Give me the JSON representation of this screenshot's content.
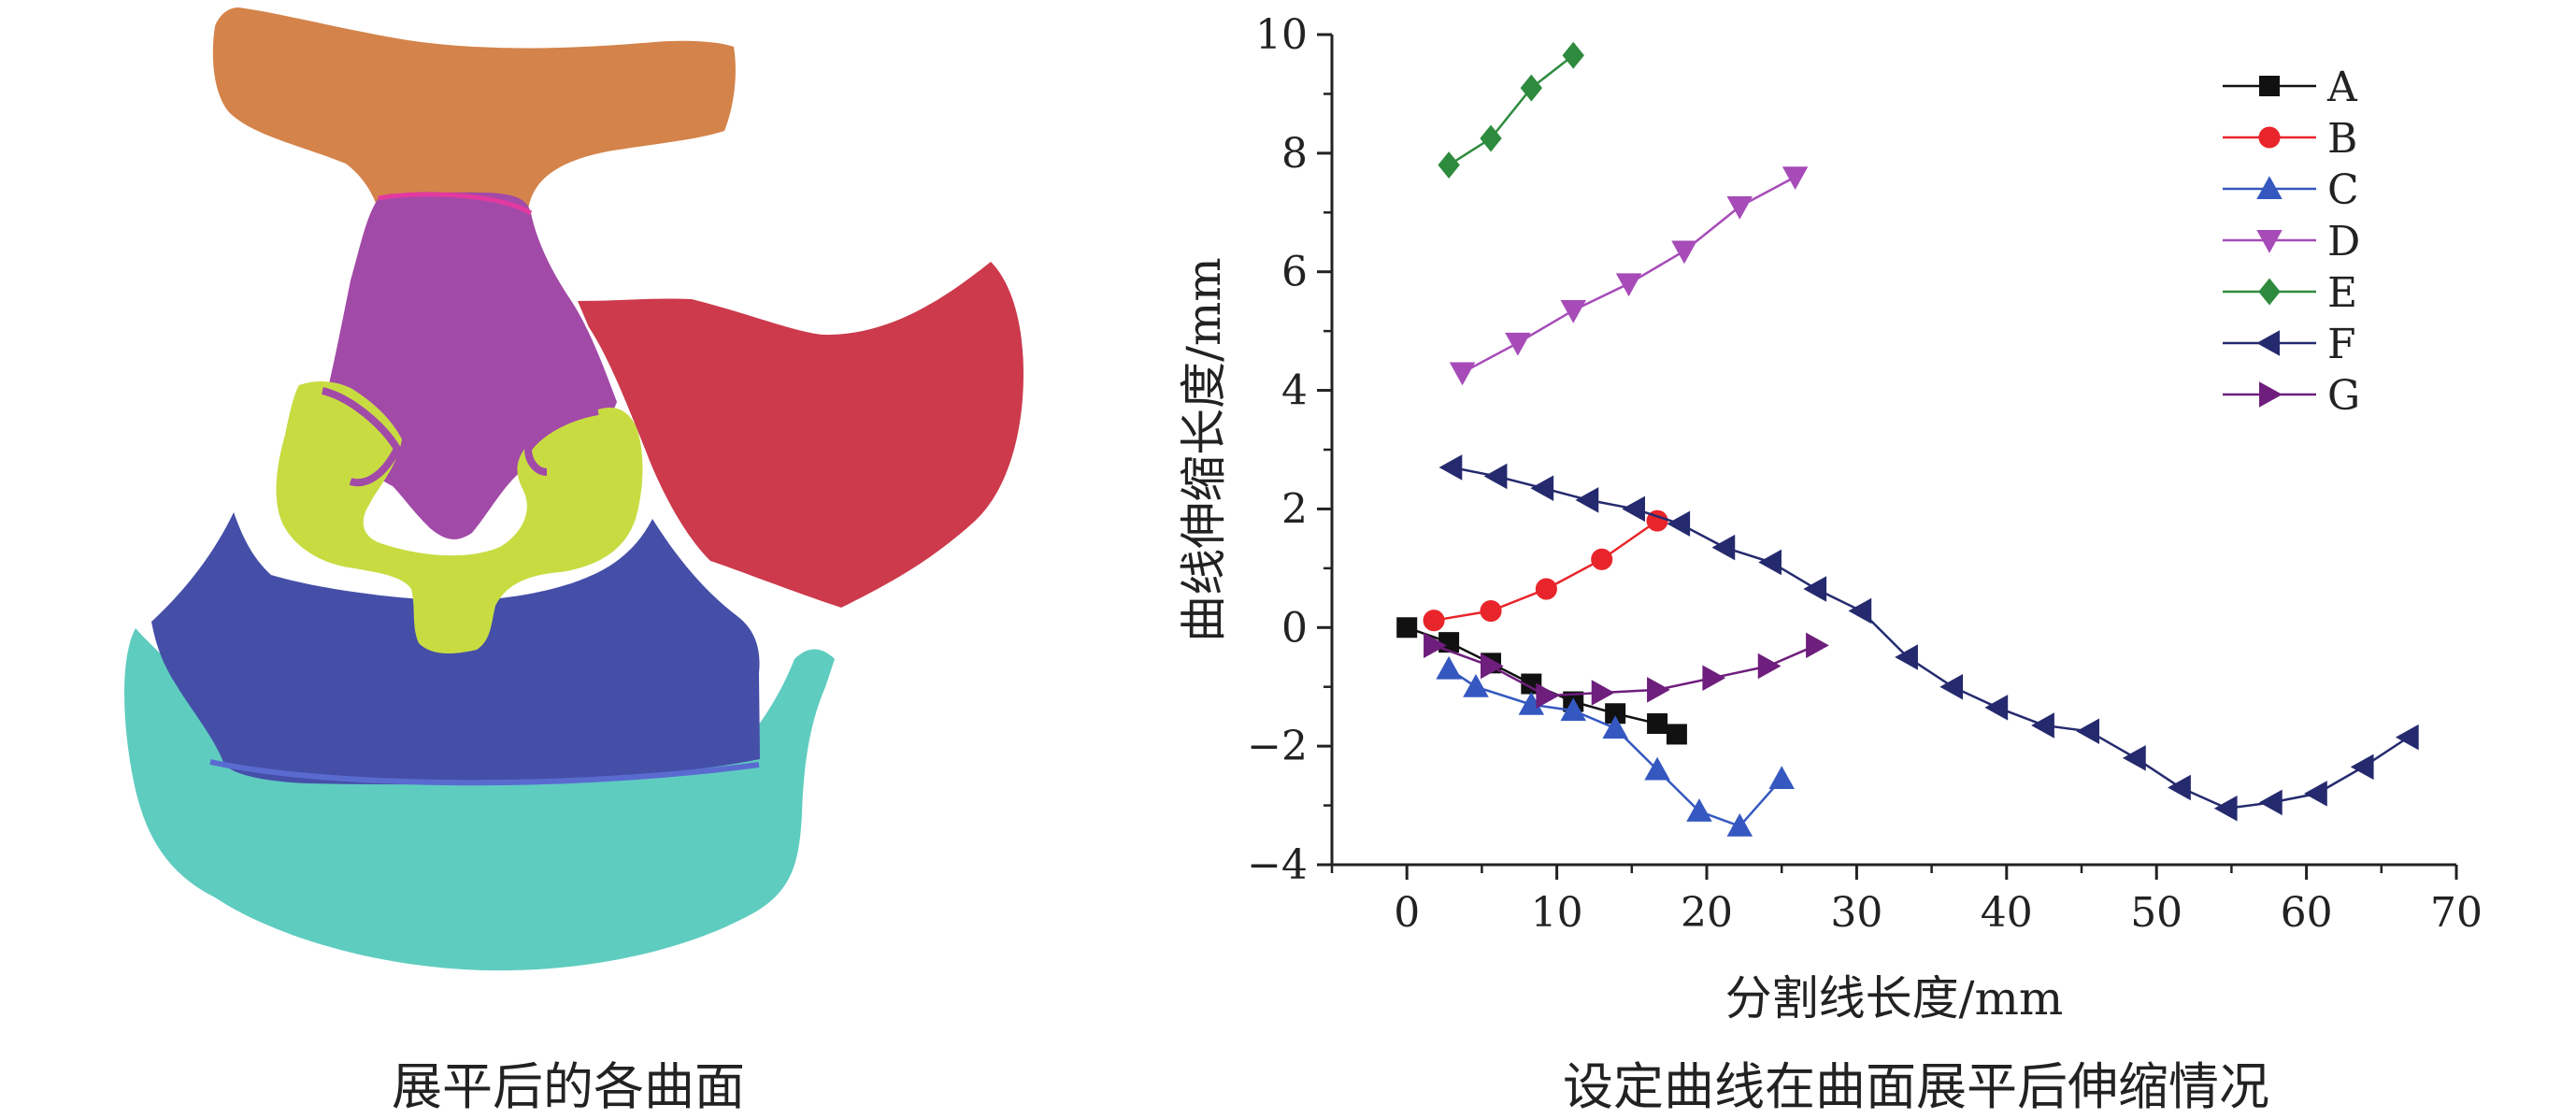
{
  "left_panel": {
    "caption": "展平后的各曲面",
    "regions": [
      {
        "name": "top-surface",
        "color": "#D4834A"
      },
      {
        "name": "center-surface",
        "color": "#A24AA8"
      },
      {
        "name": "right-surface",
        "color": "#CC3A4C"
      },
      {
        "name": "mid-surface",
        "color": "#C8DC42"
      },
      {
        "name": "lower-surface",
        "color": "#454FA8"
      },
      {
        "name": "bottom-surface",
        "color": "#5FCCC0"
      }
    ]
  },
  "right_panel": {
    "caption": "设定曲线在曲面展平后伸缩情况"
  },
  "chart_data": {
    "type": "line",
    "xlabel": "分割线长度/mm",
    "ylabel": "曲线伸缩长度/mm",
    "xlim": [
      -5,
      70
    ],
    "ylim": [
      -4,
      10
    ],
    "x_ticks": [
      0,
      10,
      20,
      30,
      40,
      50,
      60,
      70
    ],
    "y_ticks": [
      -4,
      -2,
      0,
      2,
      4,
      6,
      8,
      10
    ],
    "x_tick_labels": [
      "0",
      "10",
      "20",
      "30",
      "40",
      "50",
      "60",
      "70"
    ],
    "y_tick_labels": [
      "−4",
      "−2",
      "0",
      "2",
      "4",
      "6",
      "8",
      "10"
    ],
    "grid": false,
    "legend_position": "top-right",
    "series": [
      {
        "name": "A",
        "color": "#111111",
        "marker": "square",
        "x": [
          0,
          2.8,
          5.6,
          8.3,
          11.1,
          13.9,
          16.7,
          18.0
        ],
        "y": [
          0,
          -0.25,
          -0.6,
          -0.95,
          -1.25,
          -1.45,
          -1.62,
          -1.8
        ]
      },
      {
        "name": "B",
        "color": "#E8252B",
        "marker": "circle",
        "x": [
          1.8,
          5.6,
          9.3,
          13.0,
          16.7
        ],
        "y": [
          0.12,
          0.28,
          0.65,
          1.15,
          1.8
        ]
      },
      {
        "name": "C",
        "color": "#3558C0",
        "marker": "triangle-up",
        "x": [
          2.8,
          4.6,
          8.3,
          11.1,
          13.9,
          16.7,
          19.5,
          22.2,
          25.0
        ],
        "y": [
          -0.7,
          -1.0,
          -1.3,
          -1.4,
          -1.7,
          -2.4,
          -3.1,
          -3.35,
          -2.55
        ]
      },
      {
        "name": "D",
        "color": "#A64BB8",
        "marker": "triangle-down",
        "x": [
          3.7,
          7.4,
          11.1,
          14.8,
          18.5,
          22.2,
          25.9
        ],
        "y": [
          4.3,
          4.8,
          5.35,
          5.8,
          6.35,
          7.1,
          7.6
        ]
      },
      {
        "name": "E",
        "color": "#2E8B3E",
        "marker": "diamond",
        "x": [
          2.8,
          5.6,
          8.3,
          11.1
        ],
        "y": [
          7.8,
          8.25,
          9.1,
          9.65
        ]
      },
      {
        "name": "F",
        "color": "#252A6E",
        "marker": "triangle-left",
        "x": [
          3.0,
          6.0,
          9.1,
          12.1,
          15.2,
          18.2,
          21.2,
          24.3,
          27.3,
          30.3,
          33.4,
          36.4,
          39.4,
          42.5,
          45.5,
          48.6,
          51.6,
          54.7,
          57.7,
          60.7,
          63.8,
          66.8
        ],
        "y": [
          2.7,
          2.55,
          2.35,
          2.15,
          2.0,
          1.75,
          1.35,
          1.1,
          0.65,
          0.28,
          -0.5,
          -1.0,
          -1.35,
          -1.65,
          -1.75,
          -2.2,
          -2.7,
          -3.05,
          -2.95,
          -2.8,
          -2.35,
          -1.85
        ]
      },
      {
        "name": "G",
        "color": "#6E1E7C",
        "marker": "triangle-right",
        "x": [
          1.8,
          5.6,
          9.3,
          13.0,
          16.7,
          20.4,
          24.1,
          27.3
        ],
        "y": [
          -0.3,
          -0.65,
          -1.15,
          -1.1,
          -1.05,
          -0.85,
          -0.65,
          -0.3
        ]
      }
    ]
  }
}
